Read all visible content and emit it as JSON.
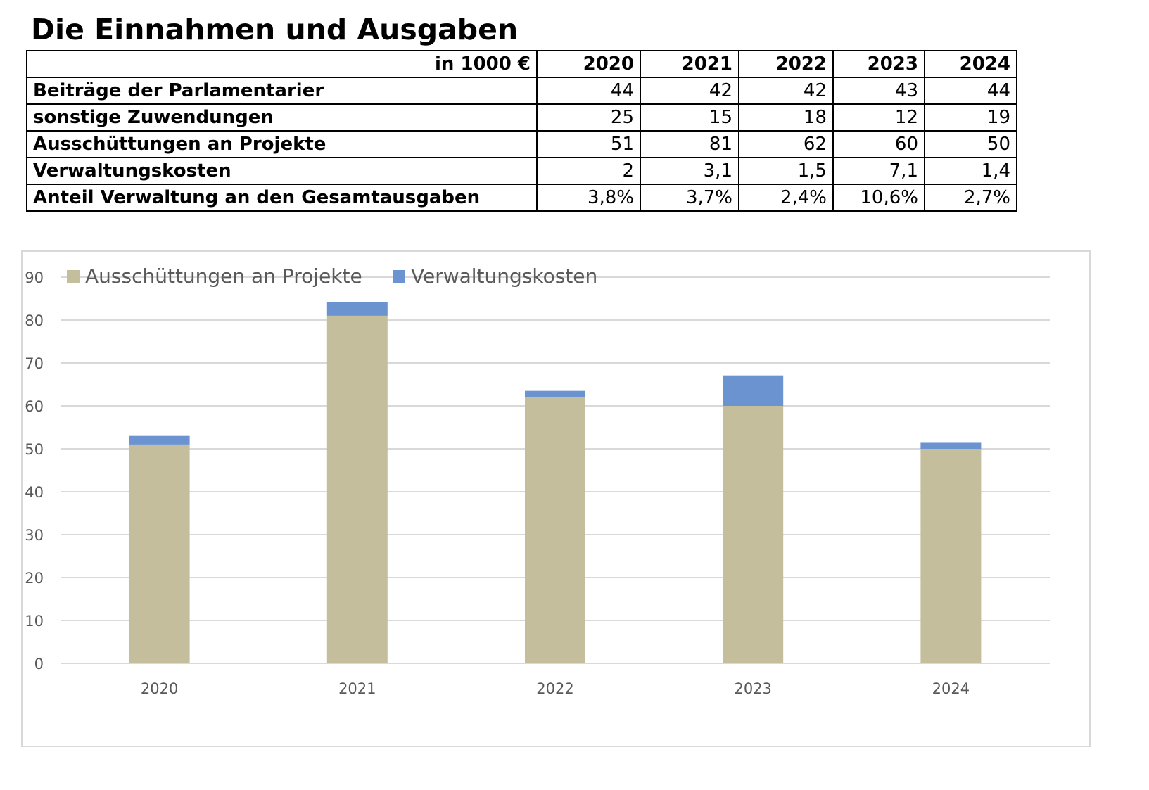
{
  "title": "Die Einnahmen und Ausgaben",
  "table": {
    "unit_header": "in 1000 €",
    "years": [
      "2020",
      "2021",
      "2022",
      "2023",
      "2024"
    ],
    "rows": [
      {
        "label": "Beiträge der Parlamentarier",
        "values": [
          "44",
          "42",
          "42",
          "43",
          "44"
        ]
      },
      {
        "label": "sonstige Zuwendungen",
        "values": [
          "25",
          "15",
          "18",
          "12",
          "19"
        ]
      },
      {
        "label": "Ausschüttungen an Projekte",
        "values": [
          "51",
          "81",
          "62",
          "60",
          "50"
        ]
      },
      {
        "label": "Verwaltungskosten",
        "values": [
          "2",
          "3,1",
          "1,5",
          "7,1",
          "1,4"
        ]
      },
      {
        "label": "Anteil Verwaltung an den Gesamtausgaben",
        "values": [
          "3,8%",
          "3,7%",
          "2,4%",
          "10,6%",
          "2,7%"
        ]
      }
    ]
  },
  "chart_data": {
    "type": "bar",
    "stacked": true,
    "categories": [
      "2020",
      "2021",
      "2022",
      "2023",
      "2024"
    ],
    "series": [
      {
        "name": "Ausschüttungen an Projekte",
        "values": [
          51,
          81,
          62,
          60,
          50
        ],
        "color": "#c4be9c"
      },
      {
        "name": "Verwaltungskosten",
        "values": [
          2,
          3.1,
          1.5,
          7.1,
          1.4
        ],
        "color": "#6a93d0"
      }
    ],
    "title": "",
    "xlabel": "",
    "ylabel": "",
    "ylim": [
      0,
      90
    ],
    "yticks": [
      0,
      10,
      20,
      30,
      40,
      50,
      60,
      70,
      80,
      90
    ],
    "grid": true,
    "legend_position": "top-left"
  }
}
